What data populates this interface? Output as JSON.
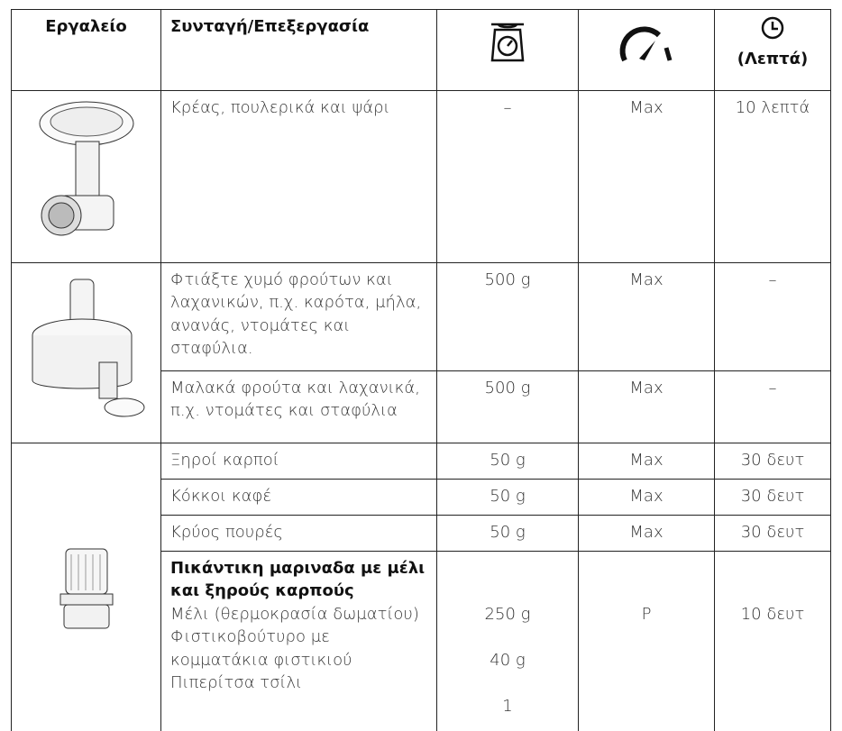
{
  "table": {
    "header": [
      "Εργαλείο",
      "Συνταγή/Επεξεργασία",
      "(Λεπτά)"
    ],
    "rows": [
      {
        "recipe": "Κρέας, πουλερικά και ψάρι",
        "quantity": "–",
        "speed": "Max",
        "time": "10 λεπτά"
      },
      {
        "recipe": "Φτιάξτε χυμό φρούτων και λαχανικών, π.χ. καρότα, μήλα, ανανάς, ντομάτες και σταφύλια.",
        "quantity": "500 g",
        "speed": "Max",
        "time": "–"
      },
      {
        "recipe": "Μαλακά φρούτα και λαχανικά, π.χ. ντομάτες και σταφύλια",
        "quantity": "500 g",
        "speed": "Max",
        "time": "–"
      },
      {
        "recipe": "Ξηροί καρποί",
        "quantity": "50 g",
        "speed": "Max",
        "time": "30 δευτ"
      },
      {
        "recipe": "Κόκκοι καφέ",
        "quantity": "50 g",
        "speed": "Max",
        "time": "30 δευτ"
      },
      {
        "recipe": "Κρύος πουρές",
        "quantity": "50 g",
        "speed": "Max",
        "time": "30 δευτ"
      },
      {
        "recipe": "Πικάντικη μαριναδα με μέλι και ξηρούς καρπούς",
        "ingredients": [
          {
            "name": "Μέλι (θερμοκρασία δωματίου)",
            "quantity": "250 g"
          },
          {
            "name": "Φιστικοβούτυρο με κομματάκια φιστικιού",
            "quantity": "40 g"
          },
          {
            "name": "Πιπερίτσα τσίλι",
            "quantity": "1"
          }
        ],
        "speed": "P",
        "time": "10 δευτ"
      }
    ]
  }
}
